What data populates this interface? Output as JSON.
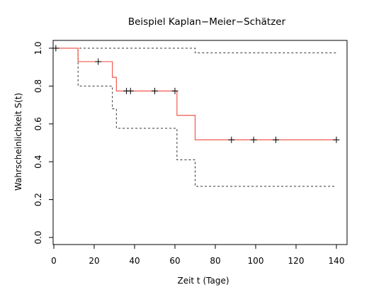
{
  "chart_data": {
    "type": "line",
    "title": "Beispiel Kaplan−Meier−Schätzer",
    "xlabel": "Zeit t (Tage)",
    "ylabel": "Wahrscheinlichkeit S(t)",
    "xlim": [
      0,
      140
    ],
    "ylim": [
      0,
      1
    ],
    "xticks": [
      "0",
      "20",
      "40",
      "60",
      "80",
      "100",
      "120",
      "140"
    ],
    "yticks": [
      "0.0",
      "0.2",
      "0.4",
      "0.6",
      "0.8",
      "1.0"
    ],
    "grid": false,
    "colors": {
      "estimate": "#f05a4f",
      "ci": "#333333",
      "censor": "#000000",
      "axis": "#000000"
    },
    "series": [
      {
        "role": "estimate",
        "step": true,
        "x": [
          0,
          12,
          29,
          31,
          61,
          70,
          140
        ],
        "y": [
          1.0,
          0.929,
          0.846,
          0.774,
          0.645,
          0.516,
          0.516
        ]
      },
      {
        "role": "upper-ci",
        "step": true,
        "x": [
          0,
          70,
          140
        ],
        "y": [
          1.0,
          0.975,
          0.975
        ]
      },
      {
        "role": "lower-ci",
        "step": true,
        "x": [
          0,
          12,
          29,
          31,
          61,
          70,
          140
        ],
        "y": [
          1.0,
          0.8,
          0.68,
          0.577,
          0.41,
          0.27,
          0.27
        ]
      }
    ],
    "censored": [
      {
        "x": 1,
        "y": 1.0
      },
      {
        "x": 22,
        "y": 0.929
      },
      {
        "x": 36,
        "y": 0.774
      },
      {
        "x": 38,
        "y": 0.774
      },
      {
        "x": 50,
        "y": 0.774
      },
      {
        "x": 60,
        "y": 0.774
      },
      {
        "x": 88,
        "y": 0.516
      },
      {
        "x": 99,
        "y": 0.516
      },
      {
        "x": 110,
        "y": 0.516
      },
      {
        "x": 140,
        "y": 0.516
      }
    ]
  }
}
